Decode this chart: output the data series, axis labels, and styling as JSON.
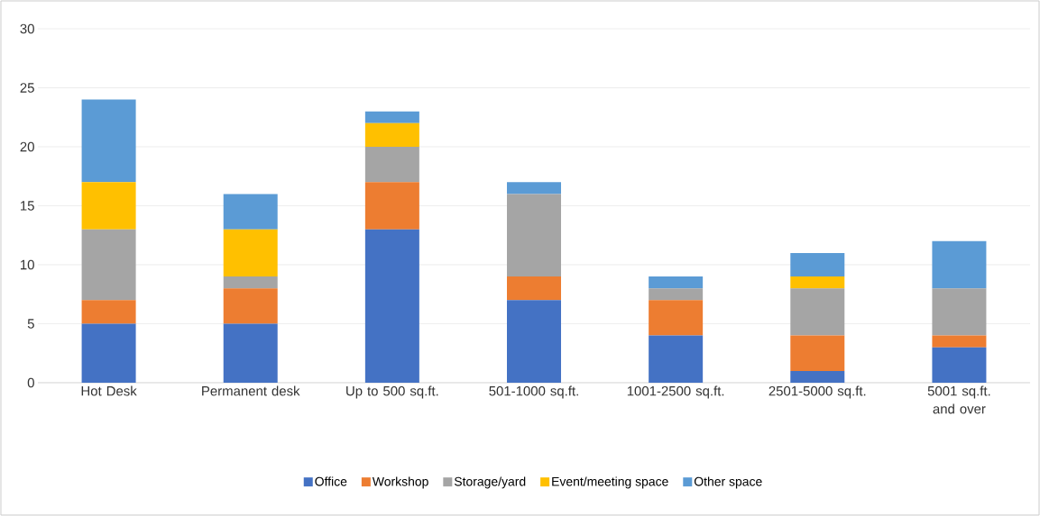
{
  "chart_data": {
    "type": "bar",
    "stacked": true,
    "categories": [
      "Hot Desk",
      "Permanent desk",
      "Up to 500 sq.ft.",
      "501-1000 sq.ft.",
      "1001-2500 sq.ft.",
      "2501-5000 sq.ft.",
      "5001 sq.ft. and over"
    ],
    "series": [
      {
        "name": "Office",
        "color": "#4472c4",
        "values": [
          5,
          5,
          13,
          7,
          4,
          1,
          3
        ]
      },
      {
        "name": "Workshop",
        "color": "#ed7d31",
        "values": [
          2,
          3,
          4,
          2,
          3,
          3,
          1
        ]
      },
      {
        "name": "Storage/yard",
        "color": "#a5a5a5",
        "values": [
          6,
          1,
          3,
          7,
          1,
          4,
          4
        ]
      },
      {
        "name": "Event/meeting space",
        "color": "#ffc000",
        "values": [
          4,
          4,
          2,
          0,
          0,
          1,
          0
        ]
      },
      {
        "name": "Other space",
        "color": "#5b9bd5",
        "values": [
          7,
          3,
          1,
          1,
          1,
          2,
          4
        ]
      }
    ],
    "ylim": [
      0,
      30
    ],
    "yticks": [
      0,
      5,
      10,
      15,
      20,
      25,
      30
    ],
    "grid": "y",
    "legend": "bottom"
  }
}
